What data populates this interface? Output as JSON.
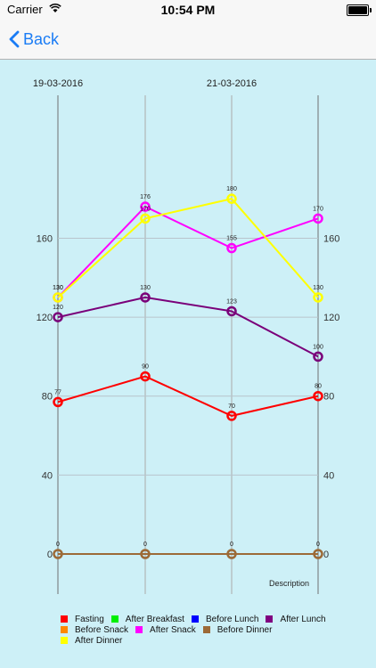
{
  "status_bar": {
    "carrier": "Carrier",
    "time": "10:54 PM"
  },
  "nav": {
    "back_label": "Back"
  },
  "chart_data": {
    "type": "line",
    "top_dates": [
      "19-03-2016",
      "21-03-2016"
    ],
    "ylim": [
      0,
      190
    ],
    "y_ticks": [
      0,
      40,
      80,
      120,
      160
    ],
    "grid": true,
    "x_title": "Description",
    "series": [
      {
        "name": "Fasting",
        "color": "#ff0000",
        "values": [
          77,
          90,
          70,
          80
        ]
      },
      {
        "name": "After Lunch",
        "color": "#7a007a",
        "values": [
          120,
          130,
          123,
          100
        ]
      },
      {
        "name": "After Snack",
        "color": "#ff00ff",
        "values": [
          130,
          176,
          155,
          170
        ]
      },
      {
        "name": "Before Dinner",
        "color": "#9c6a37",
        "values": [
          0,
          0,
          0,
          0
        ]
      },
      {
        "name": "After Dinner",
        "color": "#ffff00",
        "values": [
          130,
          170,
          180,
          130
        ]
      }
    ]
  },
  "legend": {
    "rows": [
      [
        {
          "label": "Fasting",
          "color": "#ff0000"
        },
        {
          "label": "After Breakfast",
          "color": "#00ee00"
        },
        {
          "label": "Before Lunch",
          "color": "#0000ff"
        },
        {
          "label": "After Lunch",
          "color": "#800080"
        }
      ],
      [
        {
          "label": "Before Snack",
          "color": "#ff8800"
        },
        {
          "label": "After Snack",
          "color": "#ff00ff"
        },
        {
          "label": "Before Dinner",
          "color": "#9c6a37"
        }
      ],
      [
        {
          "label": "After Dinner",
          "color": "#ffff00"
        }
      ]
    ]
  }
}
